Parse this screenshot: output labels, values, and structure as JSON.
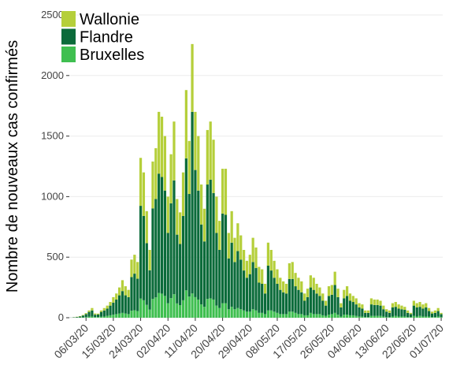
{
  "chart_data": {
    "type": "stacked_bar",
    "y_label": "Nombre de nouveaux cas confirmés",
    "categories": [
      null,
      null,
      null,
      null,
      null,
      "06/03/20",
      null,
      null,
      null,
      null,
      null,
      null,
      null,
      null,
      "15/03/20",
      null,
      null,
      null,
      null,
      null,
      null,
      null,
      null,
      "24/03/20",
      null,
      null,
      null,
      null,
      null,
      null,
      null,
      null,
      "02/04/20",
      null,
      null,
      null,
      null,
      null,
      null,
      null,
      null,
      "11/04/20",
      null,
      null,
      null,
      null,
      null,
      null,
      null,
      null,
      "20/04/20",
      null,
      null,
      null,
      null,
      null,
      null,
      null,
      null,
      "29/04/20",
      null,
      null,
      null,
      null,
      null,
      null,
      null,
      null,
      "08/05/20",
      null,
      null,
      null,
      null,
      null,
      null,
      null,
      null,
      "17/05/20",
      null,
      null,
      null,
      null,
      null,
      null,
      null,
      null,
      "26/05/20",
      null,
      null,
      null,
      null,
      null,
      null,
      null,
      null,
      "04/06/20",
      null,
      null,
      null,
      null,
      null,
      null,
      null,
      null,
      "13/06/20",
      null,
      null,
      null,
      null,
      null,
      null,
      null,
      null,
      "22/06/20",
      null,
      null,
      null,
      null,
      null,
      null,
      null,
      null,
      "01/07/20"
    ],
    "series": [
      {
        "name": "Wallonie",
        "color": "#b5cf3a",
        "values": [
          0,
          1,
          2,
          3,
          5,
          8,
          12,
          20,
          10,
          8,
          12,
          20,
          25,
          30,
          45,
          50,
          65,
          90,
          75,
          60,
          144,
          156,
          138,
          396,
          360,
          264,
          168,
          387,
          420,
          510,
          498,
          450,
          300,
          405,
          486,
          294,
          261,
          360,
          564,
          438,
          560,
          480,
          450,
          330,
          270,
          450,
          480,
          440,
          300,
          240,
          370,
          380,
          210,
          260,
          200,
          230,
          200,
          170,
          140,
          160,
          200,
          170,
          130,
          120,
          80,
          190,
          170,
          140,
          120,
          100,
          90,
          80,
          130,
          140,
          110,
          100,
          90,
          60,
          70,
          100,
          100,
          80,
          70,
          60,
          40,
          80,
          80,
          110,
          70,
          35,
          70,
          80,
          60,
          50,
          50,
          35,
          35,
          20,
          20,
          50,
          45,
          45,
          40,
          30,
          20,
          20,
          35,
          40,
          35,
          30,
          25,
          20,
          10,
          40,
          35,
          40,
          35,
          35,
          25,
          15,
          20,
          25,
          10
        ]
      },
      {
        "name": "Flandre",
        "color": "#0b6b3a",
        "values": [
          1,
          3,
          5,
          8,
          15,
          25,
          40,
          50,
          20,
          20,
          40,
          50,
          60,
          80,
          100,
          120,
          150,
          180,
          150,
          140,
          278,
          302,
          267,
          766,
          696,
          510,
          325,
          748,
          812,
          986,
          963,
          870,
          580,
          783,
          940,
          568,
          505,
          696,
          1090,
          847,
          1500,
          1050,
          900,
          660,
          540,
          945,
          980,
          880,
          600,
          480,
          740,
          730,
          420,
          530,
          390,
          470,
          410,
          330,
          280,
          310,
          390,
          350,
          250,
          240,
          170,
          370,
          330,
          280,
          240,
          200,
          180,
          170,
          270,
          270,
          220,
          200,
          180,
          120,
          150,
          210,
          200,
          170,
          150,
          120,
          85,
          155,
          160,
          230,
          145,
          75,
          135,
          155,
          120,
          110,
          95,
          75,
          65,
          35,
          35,
          95,
          90,
          90,
          85,
          60,
          45,
          35,
          75,
          75,
          65,
          60,
          55,
          35,
          25,
          85,
          75,
          75,
          65,
          75,
          45,
          30,
          35,
          45,
          25
        ]
      },
      {
        "name": "Bruxelles",
        "color": "#3fbf50",
        "values": [
          0,
          0,
          1,
          2,
          3,
          5,
          8,
          10,
          5,
          6,
          8,
          10,
          15,
          20,
          25,
          30,
          35,
          40,
          35,
          30,
          58,
          62,
          55,
          158,
          144,
          106,
          67,
          155,
          168,
          204,
          199,
          180,
          120,
          162,
          194,
          118,
          104,
          144,
          226,
          175,
          200,
          170,
          150,
          110,
          90,
          155,
          160,
          150,
          100,
          80,
          120,
          120,
          70,
          90,
          70,
          80,
          70,
          60,
          50,
          50,
          70,
          60,
          40,
          40,
          30,
          60,
          60,
          50,
          40,
          30,
          30,
          30,
          50,
          50,
          40,
          30,
          30,
          20,
          20,
          40,
          30,
          30,
          30,
          20,
          15,
          25,
          30,
          40,
          25,
          10,
          25,
          25,
          20,
          20,
          15,
          10,
          10,
          5,
          5,
          15,
          15,
          15,
          15,
          10,
          5,
          5,
          10,
          15,
          10,
          10,
          10,
          5,
          5,
          15,
          10,
          15,
          10,
          10,
          10,
          5,
          5,
          10,
          5
        ]
      }
    ],
    "ylim": [
      0,
      2500
    ],
    "yticks": [
      0,
      500,
      1000,
      1500,
      2000,
      2500
    ],
    "grid": true,
    "legend": "top-left"
  }
}
